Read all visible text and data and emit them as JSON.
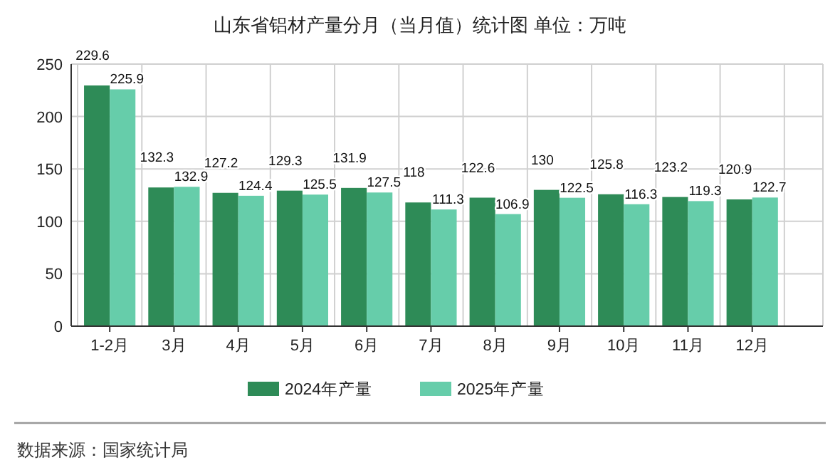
{
  "chart_data": {
    "type": "bar",
    "title": "山东省铝材产量分月（当月值）统计图 单位：万吨",
    "categories": [
      "1-2月",
      "3月",
      "4月",
      "5月",
      "6月",
      "7月",
      "8月",
      "9月",
      "10月",
      "11月",
      "12月"
    ],
    "series": [
      {
        "name": "2024年产量",
        "color": "#2e8b57",
        "values": [
          229.6,
          132.3,
          127.2,
          129.3,
          131.9,
          118,
          122.6,
          130,
          125.8,
          123.2,
          120.9
        ]
      },
      {
        "name": "2025年产量",
        "color": "#66cdaa",
        "values": [
          225.9,
          132.9,
          124.4,
          125.5,
          127.5,
          111.3,
          106.9,
          122.5,
          116.3,
          119.3,
          122.7
        ]
      }
    ],
    "ylim": [
      0,
      250
    ],
    "yticks": [
      0,
      50,
      100,
      150,
      200,
      250
    ],
    "grid": true,
    "legend": "bottom",
    "data_labels": true,
    "annotations": [
      "数据来源：国家统计局"
    ]
  }
}
